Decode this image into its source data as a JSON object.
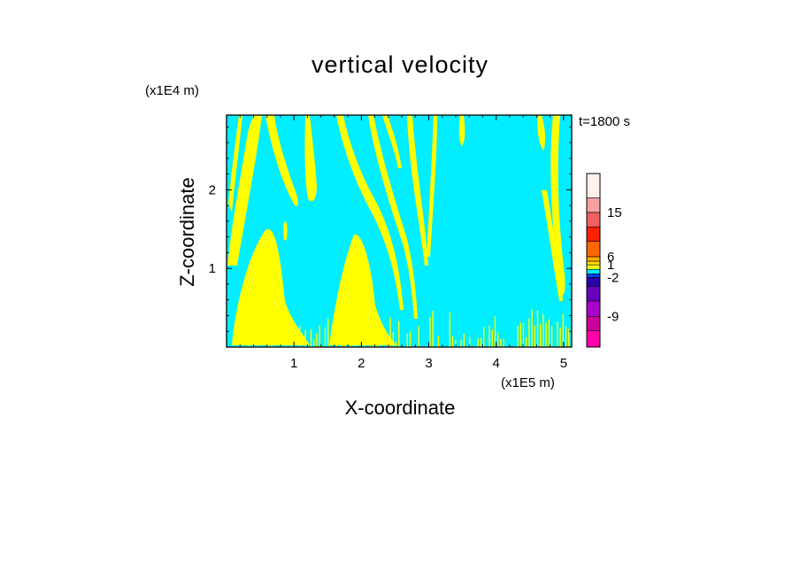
{
  "colors": {
    "background_field": "#00eeff",
    "updraft": "#ffff00",
    "frame": "#000000"
  },
  "chart_data": {
    "type": "heatmap",
    "title": "vertical velocity",
    "xlabel": "X-coordinate",
    "ylabel": "Z-coordinate",
    "x_unit": "(x1E5 m)",
    "y_unit": "(x1E4 m)",
    "time_label": "t=1800 s",
    "xlim": [
      0,
      5.12
    ],
    "ylim": [
      0,
      2.95
    ],
    "x_ticks": [
      1,
      2,
      3,
      4,
      5
    ],
    "y_ticks": [
      1,
      2
    ],
    "colorbar": {
      "tick_labels": [
        "15",
        "6",
        "1",
        "-2",
        "-9"
      ],
      "levels": [
        {
          "color": "#ff00aa"
        },
        {
          "color": "#cc0099"
        },
        {
          "color": "#aa00cc"
        },
        {
          "color": "#6600bb"
        },
        {
          "color": "#2a00aa"
        },
        {
          "color": "#0044ff"
        },
        {
          "color": "#00eeff"
        },
        {
          "color": "#ffff00"
        },
        {
          "color": "#ffdd00"
        },
        {
          "color": "#ffaa00"
        },
        {
          "color": "#ff6600"
        },
        {
          "color": "#ff2200"
        },
        {
          "color": "#f06060"
        },
        {
          "color": "#f8a0a0"
        },
        {
          "color": "#fff0ec"
        }
      ]
    }
  }
}
